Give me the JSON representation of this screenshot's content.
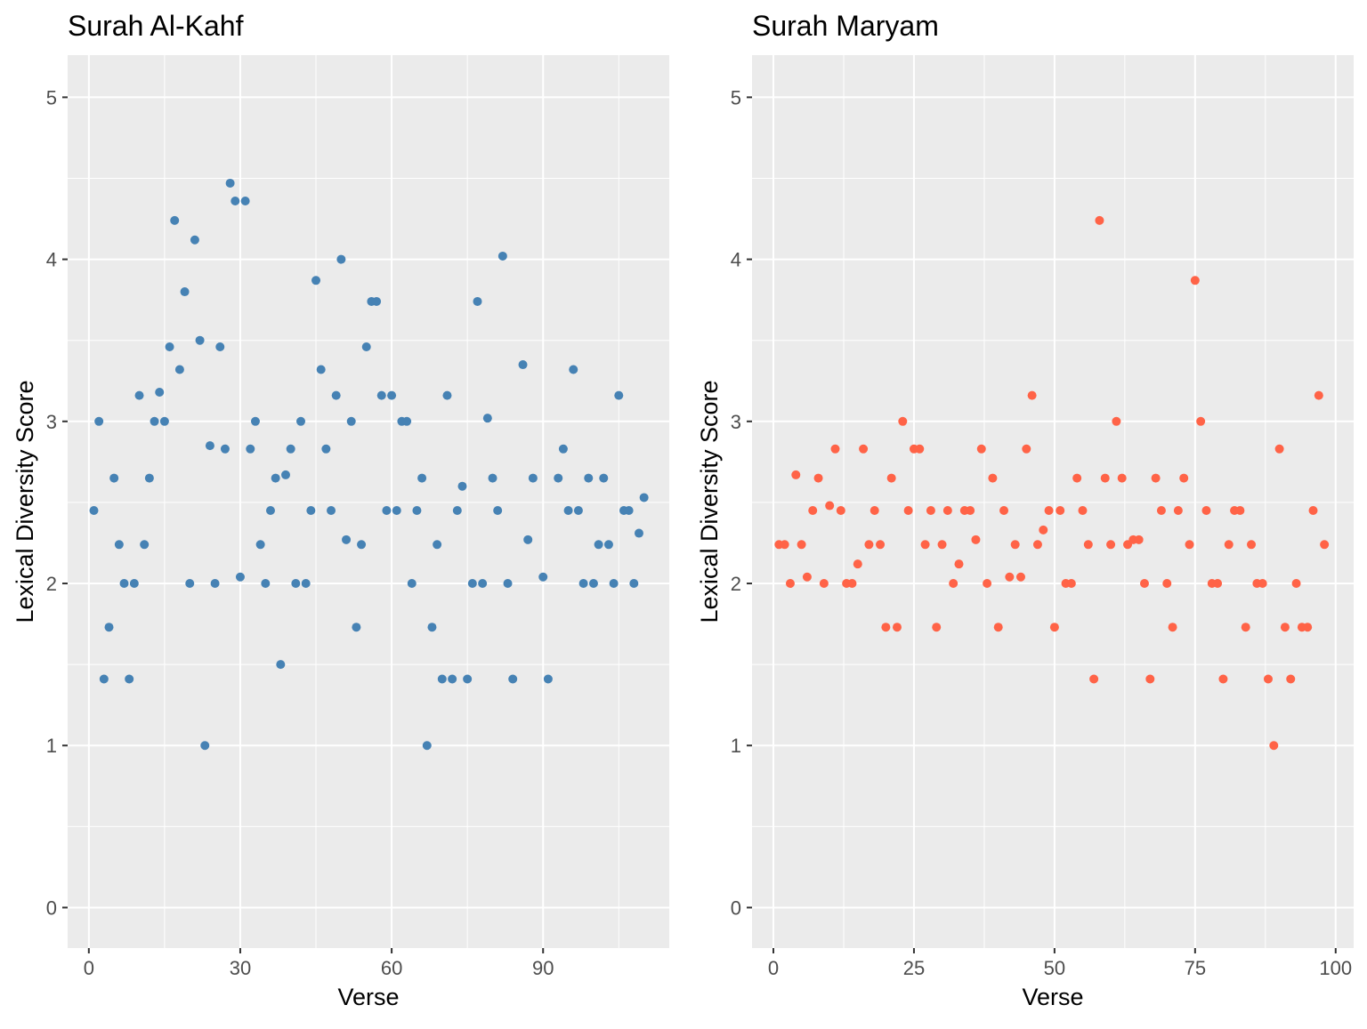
{
  "chart_data": [
    {
      "type": "scatter",
      "title": "Surah Al-Kahf",
      "xlabel": "Verse",
      "ylabel": "Lexical Diversity Score",
      "xlim": [
        -4.2,
        115
      ],
      "ylim": [
        -0.25,
        5.26
      ],
      "xticks": [
        0,
        30,
        60,
        90
      ],
      "yticks": [
        0,
        1,
        2,
        3,
        4,
        5
      ],
      "grid": true,
      "color": "#4682B4",
      "points": [
        [
          1,
          2.45
        ],
        [
          2,
          3.0
        ],
        [
          3,
          1.41
        ],
        [
          4,
          1.73
        ],
        [
          5,
          2.65
        ],
        [
          6,
          2.24
        ],
        [
          7,
          2.0
        ],
        [
          8,
          1.41
        ],
        [
          9,
          2.0
        ],
        [
          10,
          3.16
        ],
        [
          11,
          2.24
        ],
        [
          12,
          2.65
        ],
        [
          13,
          3.0
        ],
        [
          14,
          3.18
        ],
        [
          15,
          3.0
        ],
        [
          16,
          3.46
        ],
        [
          17,
          4.24
        ],
        [
          18,
          3.32
        ],
        [
          19,
          3.8
        ],
        [
          20,
          2.0
        ],
        [
          21,
          4.12
        ],
        [
          22,
          3.5
        ],
        [
          23,
          1.0
        ],
        [
          24,
          2.85
        ],
        [
          25,
          2.0
        ],
        [
          26,
          3.46
        ],
        [
          27,
          2.83
        ],
        [
          28,
          4.47
        ],
        [
          29,
          4.36
        ],
        [
          30,
          2.04
        ],
        [
          31,
          4.36
        ],
        [
          32,
          2.83
        ],
        [
          33,
          3.0
        ],
        [
          34,
          2.24
        ],
        [
          35,
          2.0
        ],
        [
          36,
          2.45
        ],
        [
          37,
          2.65
        ],
        [
          38,
          1.5
        ],
        [
          39,
          2.67
        ],
        [
          40,
          2.83
        ],
        [
          41,
          2.0
        ],
        [
          42,
          3.0
        ],
        [
          43,
          2.0
        ],
        [
          44,
          2.45
        ],
        [
          45,
          3.87
        ],
        [
          46,
          3.32
        ],
        [
          47,
          2.83
        ],
        [
          48,
          2.45
        ],
        [
          49,
          3.16
        ],
        [
          50,
          4.0
        ],
        [
          51,
          2.27
        ],
        [
          52,
          3.0
        ],
        [
          53,
          1.73
        ],
        [
          54,
          2.24
        ],
        [
          55,
          3.46
        ],
        [
          56,
          3.74
        ],
        [
          57,
          3.74
        ],
        [
          58,
          3.16
        ],
        [
          59,
          2.45
        ],
        [
          60,
          3.16
        ],
        [
          61,
          2.45
        ],
        [
          62,
          3.0
        ],
        [
          63,
          3.0
        ],
        [
          64,
          2.0
        ],
        [
          65,
          2.45
        ],
        [
          66,
          2.65
        ],
        [
          67,
          1.0
        ],
        [
          68,
          1.73
        ],
        [
          69,
          2.24
        ],
        [
          70,
          1.41
        ],
        [
          71,
          3.16
        ],
        [
          72,
          1.41
        ],
        [
          73,
          2.45
        ],
        [
          74,
          2.6
        ],
        [
          75,
          1.41
        ],
        [
          76,
          2.0
        ],
        [
          77,
          3.74
        ],
        [
          78,
          2.0
        ],
        [
          79,
          3.02
        ],
        [
          80,
          2.65
        ],
        [
          81,
          2.45
        ],
        [
          82,
          4.02
        ],
        [
          83,
          2.0
        ],
        [
          84,
          1.41
        ],
        [
          86,
          3.35
        ],
        [
          87,
          2.27
        ],
        [
          88,
          2.65
        ],
        [
          90,
          2.04
        ],
        [
          91,
          1.41
        ],
        [
          93,
          2.65
        ],
        [
          94,
          2.83
        ],
        [
          95,
          2.45
        ],
        [
          96,
          3.32
        ],
        [
          97,
          2.45
        ],
        [
          98,
          2.0
        ],
        [
          99,
          2.65
        ],
        [
          100,
          2.0
        ],
        [
          101,
          2.24
        ],
        [
          102,
          2.65
        ],
        [
          103,
          2.24
        ],
        [
          104,
          2.0
        ],
        [
          105,
          3.16
        ],
        [
          106,
          2.45
        ],
        [
          107,
          2.45
        ],
        [
          108,
          2.0
        ],
        [
          109,
          2.31
        ],
        [
          110,
          2.53
        ]
      ]
    },
    {
      "type": "scatter",
      "title": "Surah Maryam",
      "xlabel": "Verse",
      "ylabel": "Lexical Diversity Score",
      "xlim": [
        -3.8,
        103.2
      ],
      "ylim": [
        -0.25,
        5.26
      ],
      "xticks": [
        0,
        25,
        50,
        75,
        100
      ],
      "yticks": [
        0,
        1,
        2,
        3,
        4,
        5
      ],
      "grid": true,
      "color": "#FF6347",
      "points": [
        [
          1,
          2.24
        ],
        [
          2,
          2.24
        ],
        [
          3,
          2.0
        ],
        [
          4,
          2.67
        ],
        [
          5,
          2.24
        ],
        [
          6,
          2.04
        ],
        [
          7,
          2.45
        ],
        [
          8,
          2.65
        ],
        [
          9,
          2.0
        ],
        [
          10,
          2.48
        ],
        [
          11,
          2.83
        ],
        [
          12,
          2.45
        ],
        [
          13,
          2.0
        ],
        [
          14,
          2.0
        ],
        [
          15,
          2.12
        ],
        [
          16,
          2.83
        ],
        [
          17,
          2.24
        ],
        [
          18,
          2.45
        ],
        [
          19,
          2.24
        ],
        [
          20,
          1.73
        ],
        [
          21,
          2.65
        ],
        [
          22,
          1.73
        ],
        [
          23,
          3.0
        ],
        [
          24,
          2.45
        ],
        [
          25,
          2.83
        ],
        [
          26,
          2.83
        ],
        [
          27,
          2.24
        ],
        [
          28,
          2.45
        ],
        [
          29,
          1.73
        ],
        [
          30,
          2.24
        ],
        [
          31,
          2.45
        ],
        [
          32,
          2.0
        ],
        [
          33,
          2.12
        ],
        [
          34,
          2.45
        ],
        [
          35,
          2.45
        ],
        [
          36,
          2.27
        ],
        [
          37,
          2.83
        ],
        [
          38,
          2.0
        ],
        [
          39,
          2.65
        ],
        [
          40,
          1.73
        ],
        [
          41,
          2.45
        ],
        [
          42,
          2.04
        ],
        [
          43,
          2.24
        ],
        [
          44,
          2.04
        ],
        [
          45,
          2.83
        ],
        [
          46,
          3.16
        ],
        [
          47,
          2.24
        ],
        [
          48,
          2.33
        ],
        [
          49,
          2.45
        ],
        [
          50,
          1.73
        ],
        [
          51,
          2.45
        ],
        [
          52,
          2.0
        ],
        [
          53,
          2.0
        ],
        [
          54,
          2.65
        ],
        [
          55,
          2.45
        ],
        [
          56,
          2.24
        ],
        [
          57,
          1.41
        ],
        [
          58,
          4.24
        ],
        [
          59,
          2.65
        ],
        [
          60,
          2.24
        ],
        [
          61,
          3.0
        ],
        [
          62,
          2.65
        ],
        [
          63,
          2.24
        ],
        [
          64,
          2.27
        ],
        [
          65,
          2.27
        ],
        [
          66,
          2.0
        ],
        [
          67,
          1.41
        ],
        [
          68,
          2.65
        ],
        [
          69,
          2.45
        ],
        [
          70,
          2.0
        ],
        [
          71,
          1.73
        ],
        [
          72,
          2.45
        ],
        [
          73,
          2.65
        ],
        [
          74,
          2.24
        ],
        [
          75,
          3.87
        ],
        [
          76,
          3.0
        ],
        [
          77,
          2.45
        ],
        [
          78,
          2.0
        ],
        [
          79,
          2.0
        ],
        [
          80,
          1.41
        ],
        [
          81,
          2.24
        ],
        [
          82,
          2.45
        ],
        [
          83,
          2.45
        ],
        [
          84,
          1.73
        ],
        [
          85,
          2.24
        ],
        [
          86,
          2.0
        ],
        [
          87,
          2.0
        ],
        [
          88,
          1.41
        ],
        [
          89,
          1.0
        ],
        [
          90,
          2.83
        ],
        [
          91,
          1.73
        ],
        [
          92,
          1.41
        ],
        [
          93,
          2.0
        ],
        [
          94,
          1.73
        ],
        [
          95,
          1.73
        ],
        [
          96,
          2.45
        ],
        [
          97,
          3.16
        ],
        [
          98,
          2.24
        ]
      ]
    }
  ]
}
